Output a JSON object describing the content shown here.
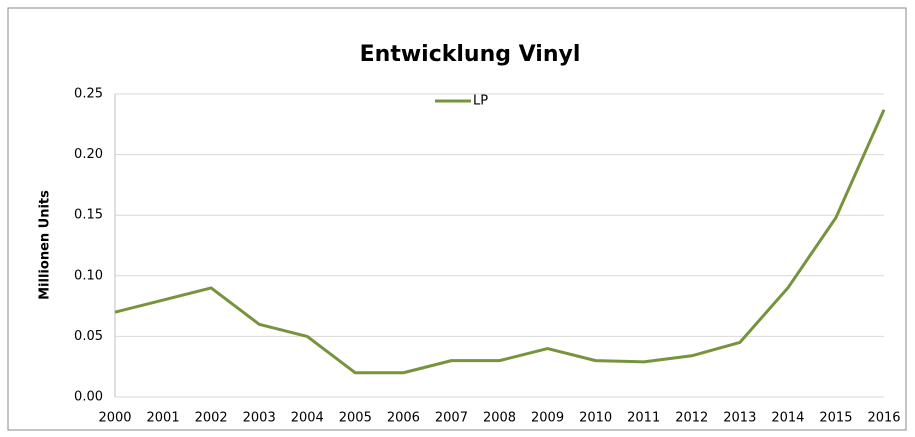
{
  "chart_data": {
    "type": "line",
    "title": "Entwicklung Vinyl",
    "y_label": "Millionen Units",
    "categories": [
      "2000",
      "2001",
      "2002",
      "2003",
      "2004",
      "2005",
      "2006",
      "2007",
      "2008",
      "2009",
      "2010",
      "2011",
      "2012",
      "2013",
      "2014",
      "2015",
      "2016"
    ],
    "series": [
      {
        "name": "LP",
        "color": "#77933c",
        "values": [
          0.07,
          0.08,
          0.09,
          0.06,
          0.05,
          0.02,
          0.02,
          0.03,
          0.03,
          0.04,
          0.03,
          0.029,
          0.034,
          0.045,
          0.09,
          0.148,
          0.237
        ]
      }
    ],
    "ylim": [
      0,
      0.25
    ],
    "yticks": [
      {
        "value": 0,
        "label": "0.00"
      },
      0.05,
      {
        "value": 0.1,
        "label": "0.10"
      },
      0.15,
      {
        "value": 0.2,
        "label": "0.20"
      },
      0.25
    ],
    "grid": true,
    "legend": "top"
  }
}
